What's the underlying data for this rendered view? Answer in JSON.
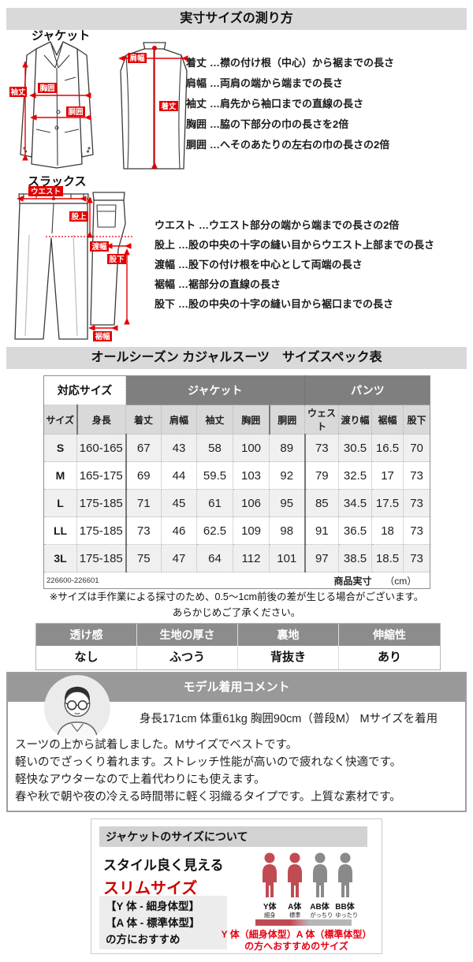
{
  "measure_guide": {
    "title": "実寸サイズの測り方",
    "jacket": {
      "label": "ジャケット",
      "diagram_labels": {
        "sode": "袖丈",
        "mune": "胸囲",
        "dou": "胴囲",
        "kata": "肩幅",
        "kitake": "着丈"
      },
      "terms": [
        {
          "term": "着丈",
          "desc": "…襟の付け根（中心）から裾までの長さ"
        },
        {
          "term": "肩幅",
          "desc": "…両肩の端から端までの長さ"
        },
        {
          "term": "袖丈",
          "desc": "…肩先から袖口までの直線の長さ"
        },
        {
          "term": "胸囲",
          "desc": "…脇の下部分の巾の長さを2倍"
        },
        {
          "term": "胴囲",
          "desc": "…へそのあたりの左右の巾の長さの2倍"
        }
      ]
    },
    "slacks": {
      "label": "スラックス",
      "diagram_labels": {
        "waist": "ウエスト",
        "mataue": "股上",
        "watari": "渡幅",
        "matashita": "股下",
        "suso": "裾幅"
      },
      "terms": [
        {
          "term": "ウエスト",
          "desc": "…ウエスト部分の端から端までの長さの2倍"
        },
        {
          "term": "股上",
          "desc": "…股の中央の十字の縫い目からウエスト上部までの長さ"
        },
        {
          "term": "渡幅",
          "desc": "…股下の付け根を中心として両端の長さ"
        },
        {
          "term": "裾幅",
          "desc": "…裾部分の直線の長さ"
        },
        {
          "term": "股下",
          "desc": "…股の中央の十字の縫い目から裾口までの長さ"
        }
      ]
    }
  },
  "size_table": {
    "title": "オールシーズン カジャルスーツ　サイズスペック表",
    "group_headers": {
      "size": "対応サイズ",
      "jacket": "ジャケット",
      "pants": "パンツ"
    },
    "columns": [
      "サイズ",
      "身長",
      "着丈",
      "肩幅",
      "袖丈",
      "胸囲",
      "胴囲",
      "ウェスト",
      "渡り幅",
      "裾幅",
      "股下"
    ],
    "rows": [
      {
        "size": "S",
        "values": [
          "160-165",
          "67",
          "43",
          "58",
          "100",
          "89",
          "73",
          "30.5",
          "16.5",
          "70"
        ]
      },
      {
        "size": "M",
        "values": [
          "165-175",
          "69",
          "44",
          "59.5",
          "103",
          "92",
          "79",
          "32.5",
          "17",
          "73"
        ]
      },
      {
        "size": "L",
        "values": [
          "175-185",
          "71",
          "45",
          "61",
          "106",
          "95",
          "85",
          "34.5",
          "17.5",
          "73"
        ]
      },
      {
        "size": "LL",
        "values": [
          "175-185",
          "73",
          "46",
          "62.5",
          "109",
          "98",
          "91",
          "36.5",
          "18",
          "73"
        ]
      },
      {
        "size": "3L",
        "values": [
          "175-185",
          "75",
          "47",
          "64",
          "112",
          "101",
          "97",
          "38.5",
          "18.5",
          "73"
        ]
      }
    ],
    "item_code": "226600-226601",
    "unit_label": "商品実寸",
    "unit": "（cm）"
  },
  "notes": [
    "※サイズは手作業による採寸のため、0.5～1cm前後の差が生じる場合がございます。",
    "あらかじめご了承ください。"
  ],
  "fabric_table": {
    "headers": [
      "透け感",
      "生地の厚さ",
      "裏地",
      "伸縮性"
    ],
    "values": [
      "なし",
      "ふつう",
      "背抜き",
      "あり"
    ]
  },
  "model": {
    "title": "モデル着用コメント",
    "stats": "身長171cm 体重61kg 胸囲90cm（普段M）  Mサイズを着用",
    "comments": [
      "スーツの上から試着しました。Mサイズでベストです。",
      "軽いのでざっくり着れます。ストレッチ性能が高いので疲れなく快適です。",
      "軽快なアウターなので上着代わりにも使えます。",
      "春や秋で朝や夜の冷える時間帯に軽く羽織るタイプです。上質な素材です。"
    ]
  },
  "recommendation": {
    "title": "ジャケットのサイズについて",
    "line1": "スタイル良く見える",
    "line2": "スリムサイズ",
    "body_types": [
      {
        "name": "Y体",
        "sub": "細身",
        "highlighted": true
      },
      {
        "name": "A体",
        "sub": "標準",
        "highlighted": true
      },
      {
        "name": "AB体",
        "sub": "がっちり",
        "highlighted": false
      },
      {
        "name": "BB体",
        "sub": "ゆったり",
        "highlighted": false
      }
    ],
    "recommend_box": [
      "【Y 体 - 細身体型】",
      "【A 体 - 標準体型】",
      "の方におすすめ"
    ],
    "caption_line1": "Y 体（細身体型）A 体（標準体型）",
    "caption_line2": "の方へおすすめのサイズ"
  },
  "colors": {
    "accent_red": "#e60000",
    "caption_red": "#e60012",
    "slim_red": "#cc0000",
    "group_header_gray": "#7f7f7f",
    "subheader_gray": "#d9d9d9",
    "title_bar_gray": "#d9d9d9",
    "fabric_header_gray": "#8c8c8c",
    "model_header_gray": "#999999",
    "figure_red": "#c14b52",
    "figure_gray": "#8a8a8a"
  }
}
